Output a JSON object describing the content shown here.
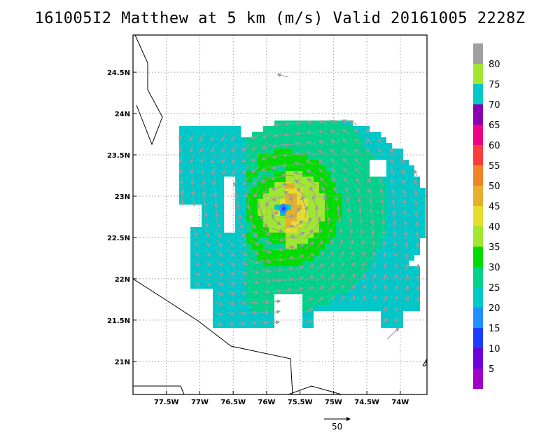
{
  "chart_data": {
    "type": "heatmap",
    "title": "161005I2 Matthew at 5 km (m/s) Valid 20161005 2228Z",
    "x_ticks": [
      {
        "value": -77.5,
        "label": "77.5W"
      },
      {
        "value": -77.0,
        "label": "77W"
      },
      {
        "value": -76.5,
        "label": "76.5W"
      },
      {
        "value": -76.0,
        "label": "76W"
      },
      {
        "value": -75.5,
        "label": "75.5W"
      },
      {
        "value": -75.0,
        "label": "75W"
      },
      {
        "value": -74.5,
        "label": "74.5W"
      },
      {
        "value": -74.0,
        "label": "74W"
      }
    ],
    "y_ticks": [
      {
        "value": 21.0,
        "label": "21N"
      },
      {
        "value": 21.5,
        "label": "21.5N"
      },
      {
        "value": 22.0,
        "label": "22N"
      },
      {
        "value": 22.5,
        "label": "22.5N"
      },
      {
        "value": 23.0,
        "label": "23N"
      },
      {
        "value": 23.5,
        "label": "23.5N"
      },
      {
        "value": 24.0,
        "label": "24N"
      },
      {
        "value": 24.5,
        "label": "24.5N"
      }
    ],
    "xlim": [
      -78.0,
      -73.6
    ],
    "ylim": [
      20.6,
      24.95
    ],
    "grid": true,
    "storm_center": {
      "lon": -75.75,
      "lat": 22.85
    },
    "colorbar": {
      "labels": [
        "5",
        "10",
        "15",
        "20",
        "25",
        "30",
        "35",
        "40",
        "45",
        "50",
        "55",
        "60",
        "65",
        "70",
        "75",
        "80"
      ],
      "colors": [
        "#a000c8",
        "#6e00dc",
        "#1e3cff",
        "#1e90ff",
        "#00c8c8",
        "#00d28c",
        "#00dc00",
        "#a0e632",
        "#e6dc32",
        "#e6af2d",
        "#f08228",
        "#fa3c3c",
        "#f00082",
        "#8c00b4",
        "#00c8c8",
        "#a0e632"
      ],
      "top_color": "#a0a0a0"
    },
    "vector_legend": {
      "label": "50",
      "units": "m/s"
    }
  }
}
